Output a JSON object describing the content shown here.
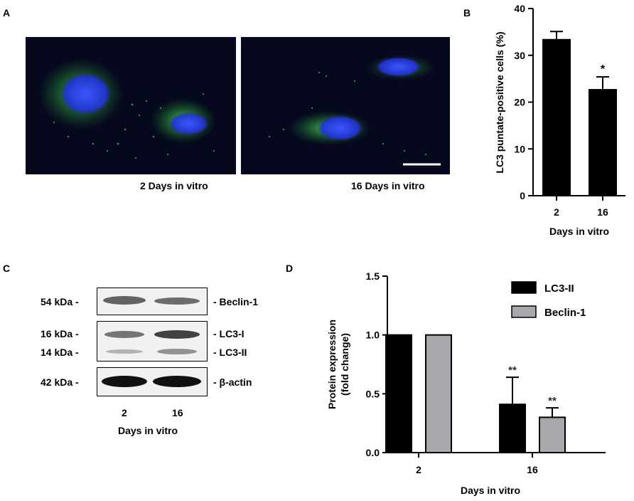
{
  "panels": {
    "a": {
      "letter": "A",
      "left_caption": "2 Days in vitro",
      "right_caption": "16 Days in vitro"
    },
    "b": {
      "letter": "B"
    },
    "c": {
      "letter": "C",
      "rows": [
        {
          "kda": "54 kDa -",
          "protein": "- Beclin-1"
        },
        {
          "kda": "16 kDa -",
          "protein": "- LC3-I"
        },
        {
          "kda": "14 kDa -",
          "protein": "- LC3-II"
        },
        {
          "kda": "42 kDa -",
          "protein": "- β-actin"
        }
      ],
      "lanes": [
        "2",
        "16"
      ],
      "xlabel": "Days in vitro"
    },
    "d": {
      "letter": "D"
    }
  },
  "colors": {
    "bar_black": "#000000",
    "bar_gray": "#a8a8ac",
    "micro_background": "#06081e",
    "nucleus_blue": "#2a3cff",
    "lc3_green": "#2ecc40"
  },
  "chart_data": [
    {
      "id": "B",
      "type": "bar",
      "categories": [
        "2",
        "16"
      ],
      "values": [
        33.5,
        22.8
      ],
      "errors": [
        1.6,
        2.6
      ],
      "significance": [
        "",
        "*"
      ],
      "ylabel": "LC3 puntate-positive cells (%)",
      "xlabel": "Days in vitro",
      "ylim": [
        0,
        40
      ],
      "yticks": [
        "0",
        "10",
        "20",
        "30",
        "40"
      ],
      "grid": false
    },
    {
      "id": "D",
      "type": "bar",
      "categories": [
        "2",
        "16"
      ],
      "series": [
        {
          "name": "LC3-II",
          "values": [
            1.0,
            0.41
          ],
          "errors": [
            0,
            0.23
          ],
          "significance": [
            "",
            "**"
          ],
          "color": "#000000"
        },
        {
          "name": "Beclin-1",
          "values": [
            1.0,
            0.3
          ],
          "errors": [
            0,
            0.08
          ],
          "significance": [
            "",
            "**"
          ],
          "color": "#a8a8ac"
        }
      ],
      "ylabel_line1": "Protein expression",
      "ylabel_line2": "(fold change)",
      "xlabel": "Days in vitro",
      "ylim": [
        0,
        1.5
      ],
      "yticks": [
        "0.0",
        "0.5",
        "1.0",
        "1.5"
      ],
      "legend_position": "top-right",
      "grid": false
    }
  ]
}
